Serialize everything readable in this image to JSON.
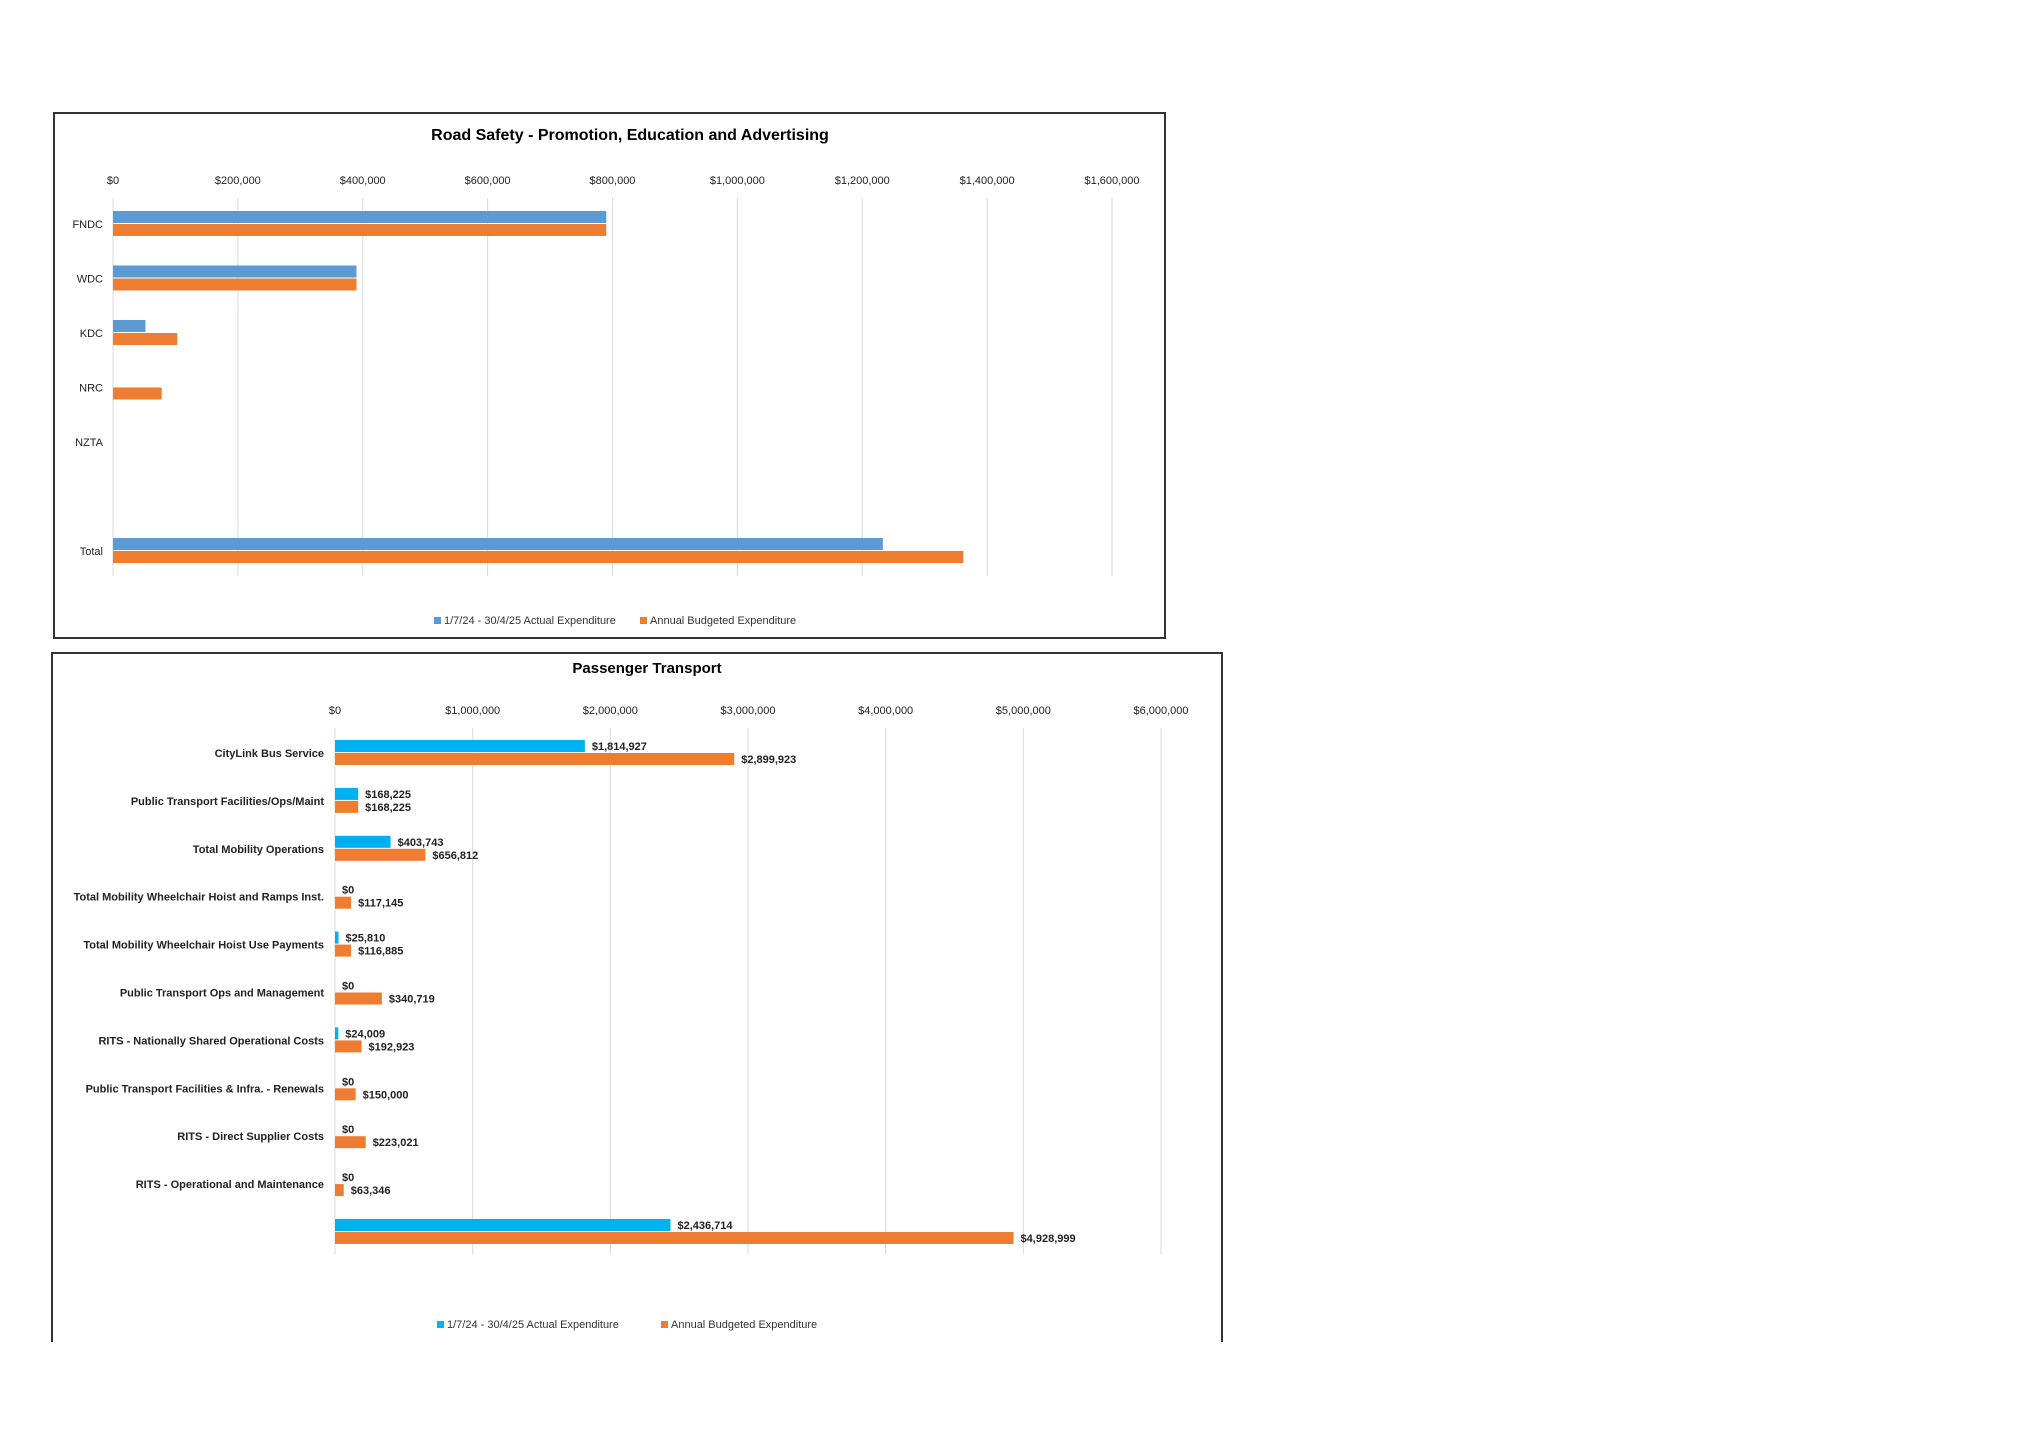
{
  "chart_data": [
    {
      "type": "bar",
      "orientation": "horizontal",
      "title": "Road Safety - Promotion, Education and Advertising",
      "xlim": [
        0,
        1600000
      ],
      "xticks": [
        "$0",
        "$200,000",
        "$400,000",
        "$600,000",
        "$800,000",
        "$1,000,000",
        "$1,200,000",
        "$1,400,000",
        "$1,600,000"
      ],
      "categories": [
        "FNDC",
        "WDC",
        "KDC",
        "NRC",
        "NZTA",
        "",
        "Total"
      ],
      "series": [
        {
          "name": "1/7/24 - 30/4/25 Actual Expenditure",
          "color": "#5b9bd5",
          "values": [
            790000,
            390000,
            52000,
            0,
            0,
            null,
            1233000
          ]
        },
        {
          "name": "Annual Budgeted Expenditure",
          "color": "#ed7d31",
          "values": [
            790000,
            390000,
            103000,
            78000,
            0,
            null,
            1362000
          ]
        }
      ],
      "grid": true,
      "legend": "bottom"
    },
    {
      "type": "bar",
      "orientation": "horizontal",
      "title": "Passenger Transport",
      "xlim": [
        0,
        6000000
      ],
      "xticks": [
        "$0",
        "$1,000,000",
        "$2,000,000",
        "$3,000,000",
        "$4,000,000",
        "$5,000,000",
        "$6,000,000"
      ],
      "categories": [
        "CityLink Bus Service",
        "Public Transport Facilities/Ops/Maint",
        "Total Mobility Operations",
        "Total Mobility Wheelchair Hoist and Ramps Inst.",
        "Total Mobility Wheelchair Hoist Use Payments",
        "Public Transport Ops and Management",
        "RITS - Nationally Shared Operational Costs",
        "Public Transport Facilities & Infra. - Renewals",
        "RITS - Direct Supplier Costs",
        "RITS - Operational and Maintenance",
        ""
      ],
      "series": [
        {
          "name": "1/7/24 - 30/4/25 Actual Expenditure",
          "color": "#00b0f0",
          "values": [
            1814927,
            168225,
            403743,
            0,
            25810,
            0,
            24009,
            0,
            0,
            0,
            2436714
          ],
          "labels": [
            "$1,814,927",
            "$168,225",
            "$403,743",
            "$0",
            "$25,810",
            "$0",
            "$24,009",
            "$0",
            "$0",
            "$0",
            "$2,436,714"
          ]
        },
        {
          "name": "Annual Budgeted Expenditure",
          "color": "#ed7d31",
          "values": [
            2899923,
            168225,
            656812,
            117145,
            116885,
            340719,
            192923,
            150000,
            223021,
            63346,
            4928999
          ],
          "labels": [
            "$2,899,923",
            "$168,225",
            "$656,812",
            "$117,145",
            "$116,885",
            "$340,719",
            "$192,923",
            "$150,000",
            "$223,021",
            "$63,346",
            "$4,928,999"
          ]
        }
      ],
      "grid": true,
      "legend": "bottom"
    }
  ]
}
